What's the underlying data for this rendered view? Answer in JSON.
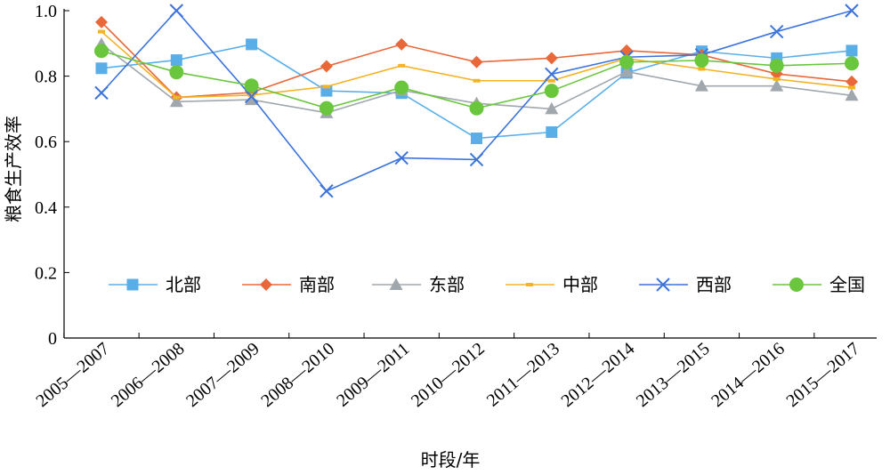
{
  "chart_data": {
    "type": "line",
    "title": "",
    "xlabel": "时段/年",
    "ylabel": "粮食生产效率",
    "ylim": [
      0,
      1.0
    ],
    "yticks": [
      "0",
      "0.2",
      "0.4",
      "0.6",
      "0.8",
      "1.0"
    ],
    "grid": false,
    "legend_position": "bottom-center, single row inside plot",
    "categories": [
      "2005—2007",
      "2006—2008",
      "2007—2009",
      "2008—2010",
      "2009—2011",
      "2010—2012",
      "2011—2013",
      "2012—2014",
      "2013—2015",
      "2014—2016",
      "2015—2017"
    ],
    "series": [
      {
        "name": "北部",
        "color": "#5aaee8",
        "marker": "square",
        "values": [
          0.824,
          0.849,
          0.897,
          0.755,
          0.748,
          0.61,
          0.629,
          0.81,
          0.876,
          0.855,
          0.878
        ]
      },
      {
        "name": "南部",
        "color": "#e8683a",
        "marker": "diamond",
        "values": [
          0.965,
          0.735,
          0.75,
          0.83,
          0.897,
          0.843,
          0.855,
          0.878,
          0.865,
          0.807,
          0.783
        ]
      },
      {
        "name": "东部",
        "color": "#a0a7ad",
        "marker": "triangle",
        "values": [
          0.898,
          0.722,
          0.728,
          0.688,
          0.757,
          0.717,
          0.7,
          0.814,
          0.77,
          0.77,
          0.741
        ]
      },
      {
        "name": "中部",
        "color": "#f5b324",
        "marker": "dash",
        "values": [
          0.936,
          0.735,
          0.742,
          0.768,
          0.832,
          0.786,
          0.786,
          0.854,
          0.822,
          0.791,
          0.765
        ]
      },
      {
        "name": "西部",
        "color": "#3c74dc",
        "marker": "x",
        "values": [
          0.749,
          1.0,
          0.738,
          0.449,
          0.55,
          0.545,
          0.806,
          0.858,
          0.865,
          0.936,
          1.0
        ]
      },
      {
        "name": "全国",
        "color": "#6ac63c",
        "marker": "circle",
        "values": [
          0.877,
          0.812,
          0.771,
          0.702,
          0.765,
          0.702,
          0.755,
          0.843,
          0.848,
          0.832,
          0.839
        ]
      }
    ]
  }
}
